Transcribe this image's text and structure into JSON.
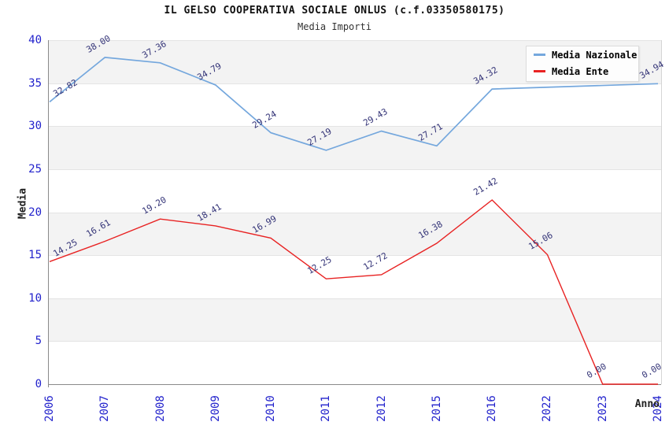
{
  "title": "IL GELSO COOPERATIVA SOCIALE ONLUS (c.f.03350580175)",
  "subtitle": "Media Importi",
  "colors": {
    "tick_label": "#2222cc",
    "data_label": "#333377",
    "band_fill": "#f3f3f3",
    "gridline": "#e4e4e4",
    "axis_line": "#8a8a8a",
    "legend_border": "#dcdcdc",
    "legend_bg": "#fdfdfd"
  },
  "chart_data": {
    "type": "line",
    "title": "IL GELSO COOPERATIVA SOCIALE ONLUS (c.f.03350580175)",
    "subtitle": "Media Importi",
    "xlabel": "Anno",
    "ylabel": "Media",
    "x": [
      "2006",
      "2007",
      "2008",
      "2009",
      "2010",
      "2011",
      "2012",
      "2015",
      "2016",
      "2022",
      "2023",
      "2024"
    ],
    "series": [
      {
        "name": "Media Nazionale",
        "color": "#74a7dd",
        "values": [
          32.82,
          38.0,
          37.36,
          34.79,
          29.24,
          27.19,
          29.43,
          27.71,
          34.32,
          null,
          null,
          34.94
        ]
      },
      {
        "name": "Media Ente",
        "color": "#e82222",
        "values": [
          14.25,
          16.61,
          19.2,
          18.41,
          16.99,
          12.25,
          12.72,
          16.38,
          21.42,
          15.06,
          0.0,
          0.0
        ]
      }
    ],
    "ylim": [
      0,
      40
    ],
    "yticks": [
      0,
      5,
      10,
      15,
      20,
      25,
      30,
      35,
      40
    ],
    "grid": "horizontal-bands",
    "legend_position": "top-right"
  }
}
